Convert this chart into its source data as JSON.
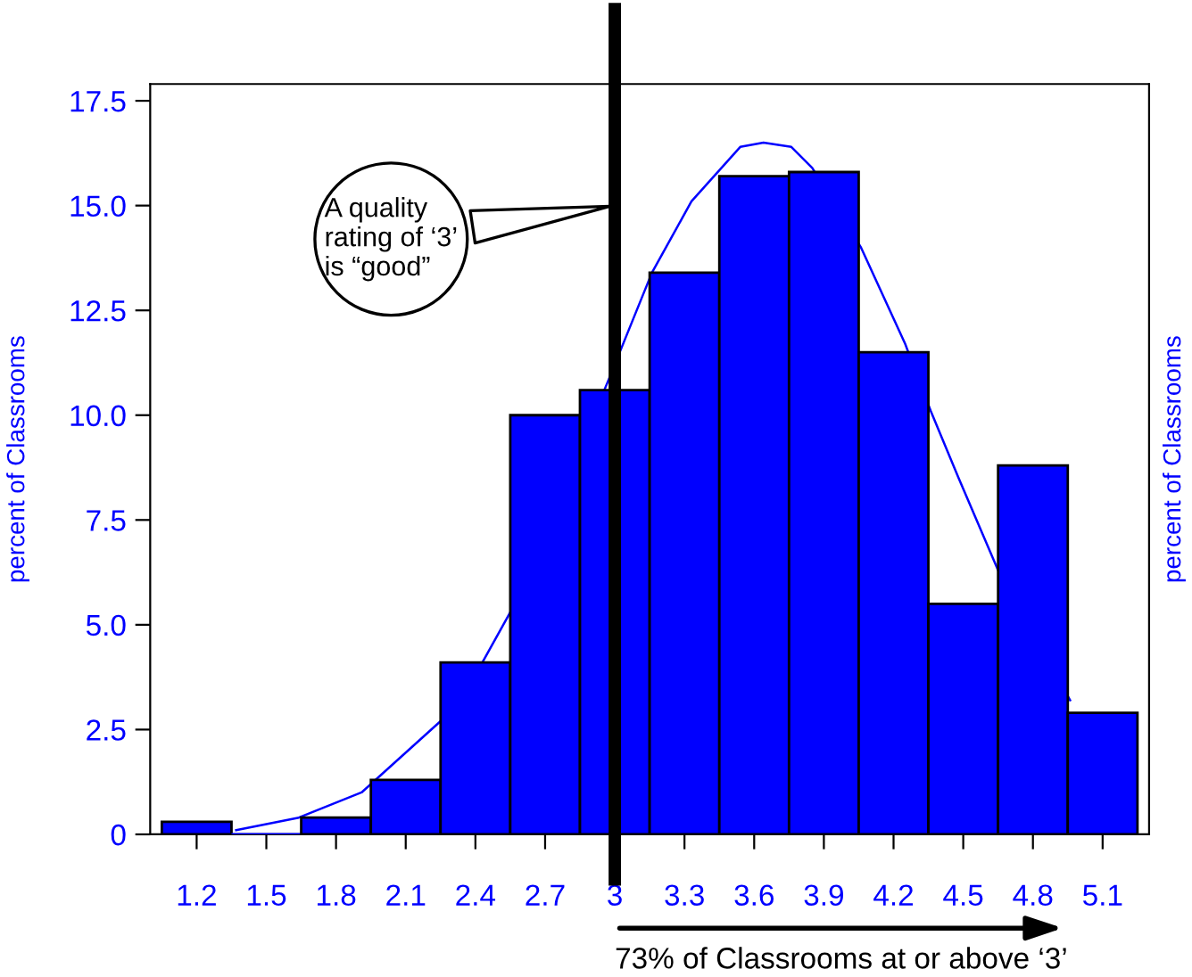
{
  "chart_data": {
    "type": "histogram",
    "bins": [
      1.05,
      1.35,
      1.65,
      1.95,
      2.25,
      2.55,
      2.85,
      3.15,
      3.45,
      3.75,
      4.05,
      4.35,
      4.65,
      4.95,
      5.25
    ],
    "values": [
      0.3,
      0,
      0.4,
      1.3,
      4.1,
      10.0,
      10.6,
      13.4,
      15.7,
      15.8,
      11.5,
      5.5,
      8.8,
      2.9
    ],
    "color": "#0000ff",
    "series": [
      {
        "type": "line",
        "color": "#0000ff",
        "x": [
          1.37,
          1.64,
          1.91,
          2.25,
          2.43,
          2.56,
          2.97,
          3.16,
          3.33,
          3.54,
          3.64,
          3.76,
          3.85,
          4.06,
          4.25,
          4.36,
          4.48,
          4.65,
          4.96
        ],
        "values": [
          0.1,
          0.4,
          1.0,
          2.7,
          4.1,
          5.4,
          10.8,
          13.4,
          15.1,
          16.4,
          16.5,
          16.4,
          15.9,
          14.0,
          11.7,
          10.1,
          8.5,
          6.3,
          3.2
        ]
      }
    ],
    "xlim": [
      1.0,
      5.3
    ],
    "xticks": [
      1.2,
      1.5,
      1.8,
      2.1,
      2.4,
      2.7,
      3,
      3.3,
      3.6,
      3.9,
      4.2,
      4.5,
      4.8,
      5.1
    ],
    "ylim": [
      0,
      17.9
    ],
    "yticks": [
      0,
      2.5,
      {
        "value": 5,
        "label": "5.0"
      },
      7.5,
      {
        "value": 10,
        "label": "10.0"
      },
      12.5,
      {
        "value": 15,
        "label": "15.0"
      },
      17.5
    ],
    "ylabel": "percent of Classrooms",
    "y2label": "percent of Classrooms",
    "ref_lines": [
      {
        "axis": "x",
        "value": 3,
        "color": "#000000"
      }
    ],
    "annotations": [
      {
        "text": "A quality\nrating of ‘3’\nis “good”",
        "x": 3,
        "y": 15
      },
      "73% of Classrooms at or above ‘3’"
    ],
    "grid": false,
    "legend": false
  }
}
